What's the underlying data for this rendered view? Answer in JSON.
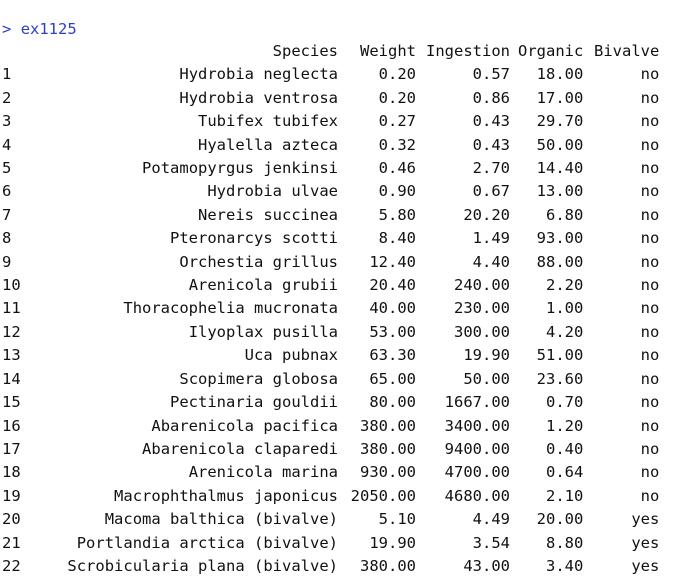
{
  "console": {
    "prompt": ">",
    "command": "ex1125"
  },
  "table": {
    "columns": [
      "",
      "Species",
      "Weight",
      "Ingestion",
      "Organic",
      "Bivalve"
    ],
    "rows": [
      [
        "1",
        "Hydrobia neglecta",
        "0.20",
        "0.57",
        "18.00",
        "no"
      ],
      [
        "2",
        "Hydrobia ventrosa",
        "0.20",
        "0.86",
        "17.00",
        "no"
      ],
      [
        "3",
        "Tubifex tubifex",
        "0.27",
        "0.43",
        "29.70",
        "no"
      ],
      [
        "4",
        "Hyalella azteca",
        "0.32",
        "0.43",
        "50.00",
        "no"
      ],
      [
        "5",
        "Potamopyrgus jenkinsi",
        "0.46",
        "2.70",
        "14.40",
        "no"
      ],
      [
        "6",
        "Hydrobia ulvae",
        "0.90",
        "0.67",
        "13.00",
        "no"
      ],
      [
        "7",
        "Nereis succinea",
        "5.80",
        "20.20",
        "6.80",
        "no"
      ],
      [
        "8",
        "Pteronarcys scotti",
        "8.40",
        "1.49",
        "93.00",
        "no"
      ],
      [
        "9",
        "Orchestia grillus",
        "12.40",
        "4.40",
        "88.00",
        "no"
      ],
      [
        "10",
        "Arenicola grubii",
        "20.40",
        "240.00",
        "2.20",
        "no"
      ],
      [
        "11",
        "Thoracophelia mucronata",
        "40.00",
        "230.00",
        "1.00",
        "no"
      ],
      [
        "12",
        "Ilyoplax pusilla",
        "53.00",
        "300.00",
        "4.20",
        "no"
      ],
      [
        "13",
        "Uca pubnax",
        "63.30",
        "19.90",
        "51.00",
        "no"
      ],
      [
        "14",
        "Scopimera globosa",
        "65.00",
        "50.00",
        "23.60",
        "no"
      ],
      [
        "15",
        "Pectinaria gouldii",
        "80.00",
        "1667.00",
        "0.70",
        "no"
      ],
      [
        "16",
        "Abarenicola pacifica",
        "380.00",
        "3400.00",
        "1.20",
        "no"
      ],
      [
        "17",
        "Abarenicola claparedi",
        "380.00",
        "9400.00",
        "0.40",
        "no"
      ],
      [
        "18",
        "Arenicola marina",
        "930.00",
        "4700.00",
        "0.64",
        "no"
      ],
      [
        "19",
        "Macrophthalmus japonicus",
        "2050.00",
        "4680.00",
        "2.10",
        "no"
      ],
      [
        "20",
        "Macoma balthica (bivalve)",
        "5.10",
        "4.49",
        "20.00",
        "yes"
      ],
      [
        "21",
        "Portlandia arctica (bivalve)",
        "19.90",
        "3.54",
        "8.80",
        "yes"
      ],
      [
        "22",
        "Scrobicularia plana (bivalve)",
        "380.00",
        "43.00",
        "3.40",
        "yes"
      ]
    ]
  }
}
